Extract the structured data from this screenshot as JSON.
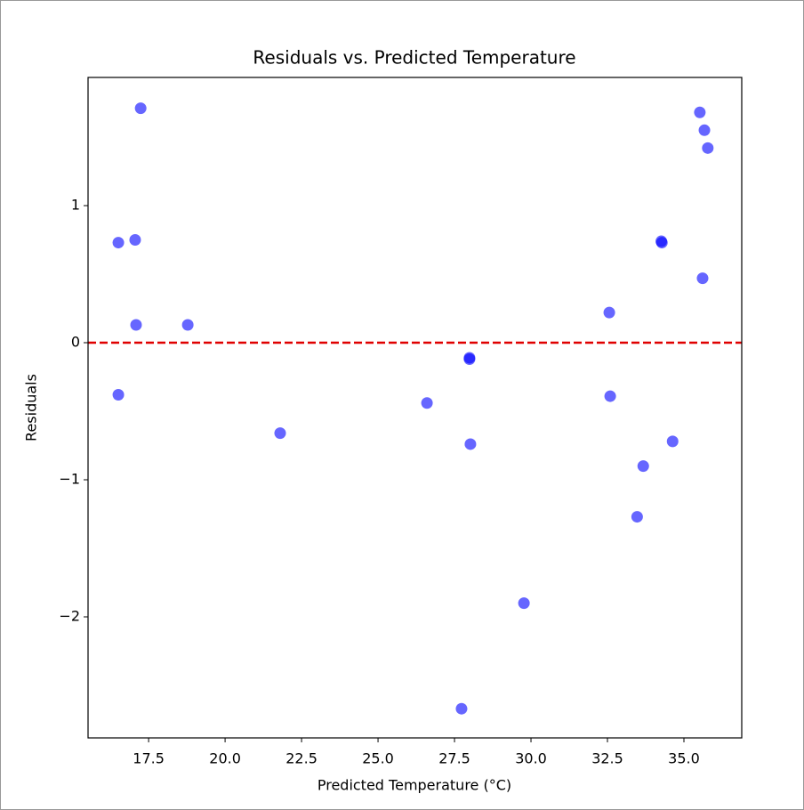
{
  "chart_data": {
    "type": "scatter",
    "title": "Residuals vs. Predicted Temperature",
    "x_label": "Predicted Temperature (°C)",
    "y_label": "Residuals",
    "series": [
      {
        "color": "#0000ff",
        "x": [
          17.24,
          16.51,
          17.06,
          17.09,
          18.78,
          16.51,
          21.8,
          26.6,
          27.99,
          27.99,
          28.02,
          27.73,
          29.77,
          32.56,
          32.59,
          33.47,
          33.67,
          34.26,
          34.28,
          34.63,
          35.52,
          35.67,
          35.78,
          35.61
        ],
        "values": [
          1.71,
          0.73,
          0.75,
          0.13,
          0.13,
          -0.38,
          -0.66,
          -0.44,
          -0.11,
          -0.12,
          -0.74,
          -2.67,
          -1.9,
          0.22,
          -0.39,
          -1.27,
          -0.9,
          0.74,
          0.73,
          -0.72,
          1.68,
          1.55,
          1.42,
          0.47
        ]
      }
    ],
    "reference_line": {
      "y": 0,
      "color": "#e00000"
    },
    "xlim": [
      15.52,
      36.89
    ],
    "ylim": [
      -2.883,
      1.935
    ],
    "xticks": [
      17.5,
      {
        "value": 20,
        "label": "20.0"
      },
      22.5,
      {
        "value": 25,
        "label": "25.0"
      },
      27.5,
      {
        "value": 30,
        "label": "30.0"
      },
      32.5,
      {
        "value": 35,
        "label": "35.0"
      }
    ],
    "yticks": [
      {
        "value": -2,
        "label": "−2"
      },
      {
        "value": -1,
        "label": "−1"
      },
      0,
      1
    ],
    "grid": false
  }
}
